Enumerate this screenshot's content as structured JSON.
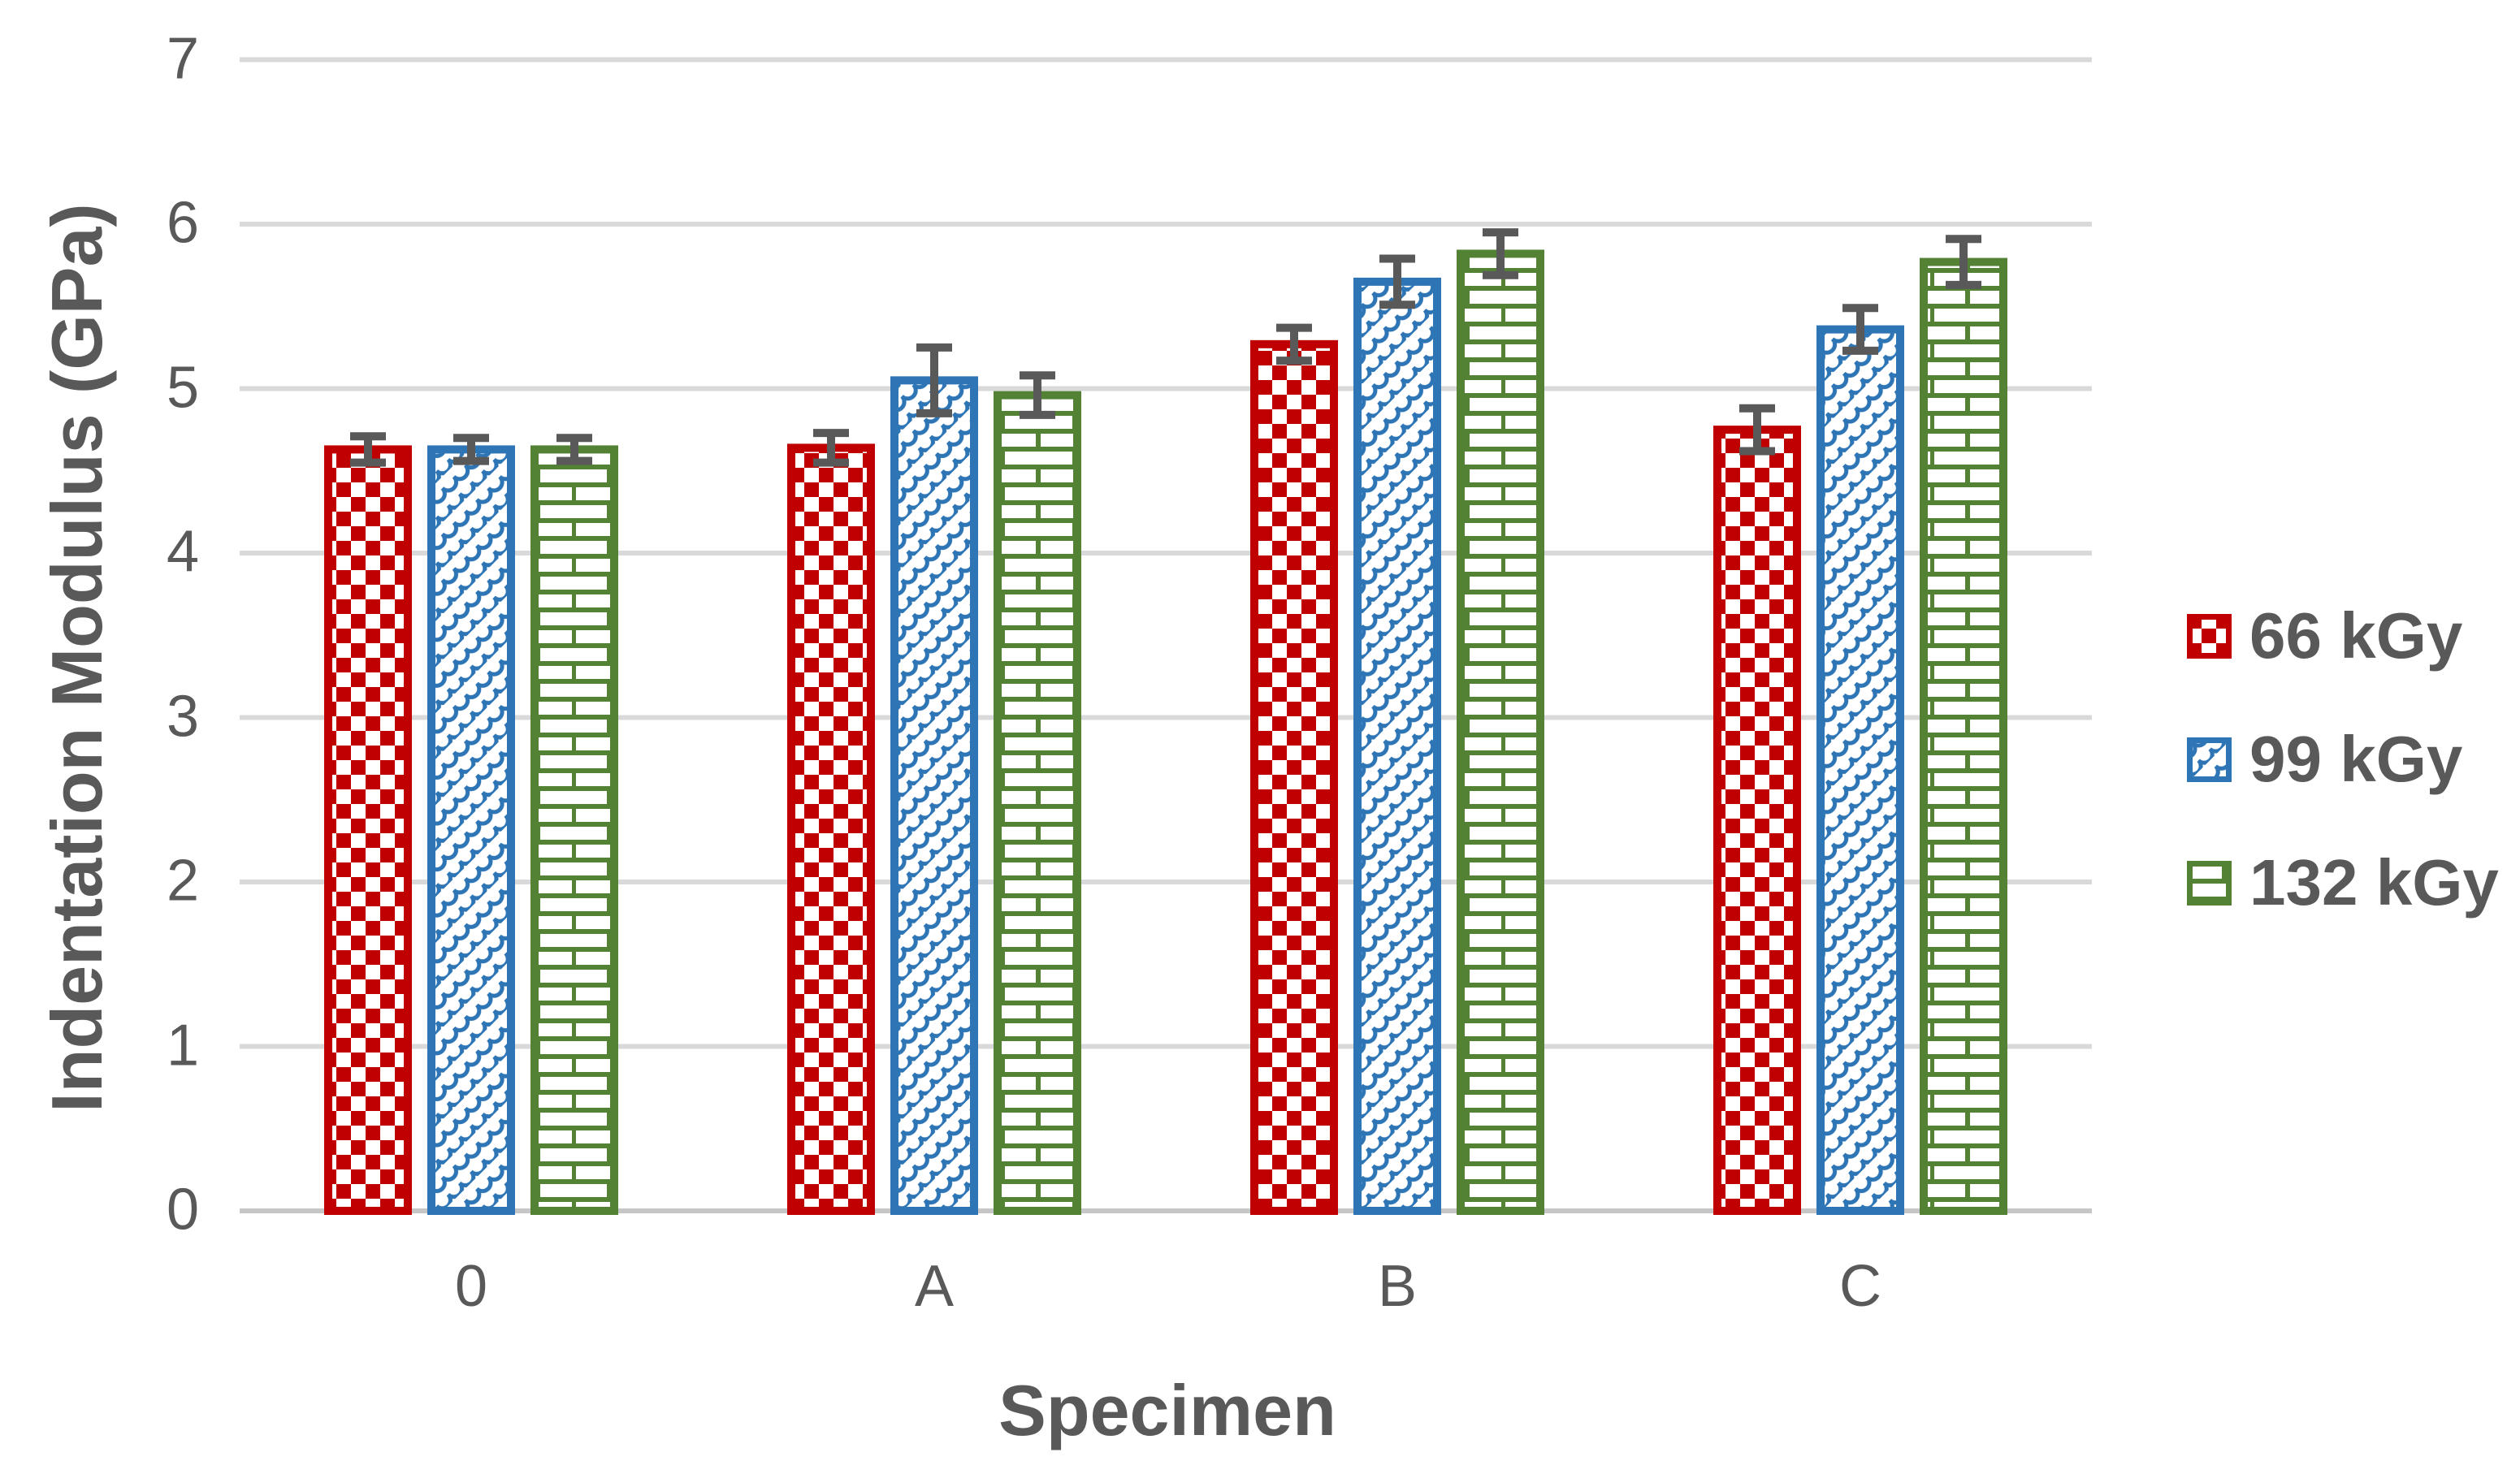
{
  "chart_data": {
    "type": "bar",
    "title": "",
    "xlabel": "Specimen",
    "ylabel": "Indentation Modulus (GPa)",
    "ylim": [
      0,
      7
    ],
    "yticks": [
      0,
      1,
      2,
      3,
      4,
      5,
      6,
      7
    ],
    "grid": true,
    "legend_position": "right",
    "categories": [
      "0",
      "A",
      "B",
      "C"
    ],
    "series": [
      {
        "name": "66 kGy",
        "color": "#C00000",
        "pattern": "checker",
        "values": [
          4.63,
          4.64,
          5.27,
          4.75
        ],
        "errors": [
          0.08,
          0.09,
          0.1,
          0.13
        ]
      },
      {
        "name": "99 kGy",
        "color": "#2E75B6",
        "pattern": "shingle",
        "values": [
          4.63,
          5.05,
          5.65,
          5.36
        ],
        "errors": [
          0.07,
          0.2,
          0.14,
          0.13
        ]
      },
      {
        "name": "132 kGy",
        "color": "#548235",
        "pattern": "brick",
        "values": [
          4.63,
          4.96,
          5.82,
          5.77
        ],
        "errors": [
          0.07,
          0.12,
          0.13,
          0.14
        ]
      }
    ],
    "colors": {
      "grid": "#D9D9D9",
      "axis_line": "#C6C6C6",
      "text": "#595959",
      "error_bar": "#595959",
      "background": "#FFFFFF"
    }
  }
}
